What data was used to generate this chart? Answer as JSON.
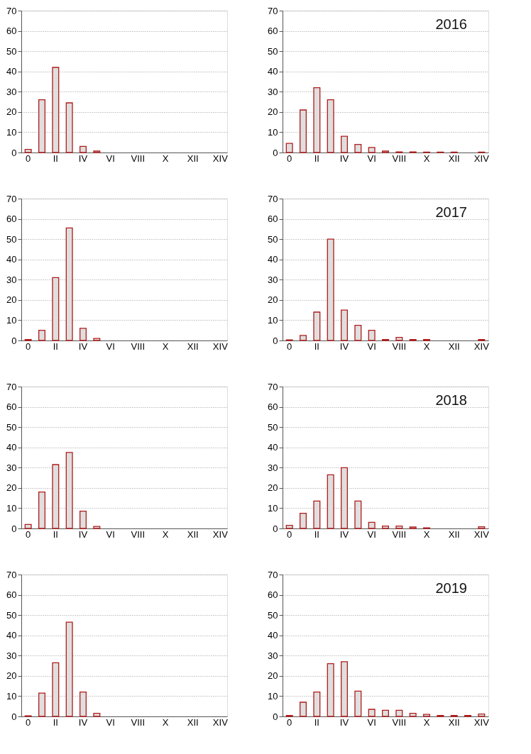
{
  "chart_data": [
    {
      "type": "bar",
      "categories": [
        "0",
        null,
        "II",
        null,
        "IV",
        null,
        "VI",
        null,
        "VIII",
        null,
        "X",
        null,
        "XII",
        null,
        "XIV"
      ],
      "color": "#e0dede",
      "values": [
        1.5,
        26,
        42,
        24.5,
        3,
        0.7,
        null,
        null,
        null,
        null,
        null,
        null,
        null,
        null,
        null
      ],
      "ylim": [
        0,
        70
      ],
      "yticks": [
        0,
        10,
        20,
        30,
        40,
        50,
        60,
        70
      ],
      "grid": "y"
    },
    {
      "type": "bar",
      "title": "2016",
      "categories": [
        "0",
        null,
        "II",
        null,
        "IV",
        null,
        "VI",
        null,
        "VIII",
        null,
        "X",
        null,
        "XII",
        null,
        "XIV"
      ],
      "color": "#e0dede",
      "values": [
        4.5,
        21,
        32,
        26,
        8,
        4,
        2.5,
        0.7,
        0.3,
        0.3,
        0.2,
        0.2,
        0.2,
        null,
        0.2
      ],
      "ylim": [
        0,
        70
      ],
      "yticks": [
        0,
        10,
        20,
        30,
        40,
        50,
        60,
        70
      ],
      "grid": "y"
    },
    {
      "type": "bar",
      "categories": [
        "0",
        null,
        "II",
        null,
        "IV",
        null,
        "VI",
        null,
        "VIII",
        null,
        "X",
        null,
        "XII",
        null,
        "XIV"
      ],
      "color": "#e0dede",
      "values": [
        0.5,
        5,
        31,
        55.5,
        6,
        1,
        null,
        null,
        null,
        null,
        null,
        null,
        null,
        null,
        null
      ],
      "ylim": [
        0,
        70
      ],
      "yticks": [
        0,
        10,
        20,
        30,
        40,
        50,
        60,
        70
      ],
      "grid": "y"
    },
    {
      "type": "bar",
      "title": "2017",
      "categories": [
        "0",
        null,
        "II",
        null,
        "IV",
        null,
        "VI",
        null,
        "VIII",
        null,
        "X",
        null,
        "XII",
        null,
        "XIV"
      ],
      "color": "#e0dede",
      "values": [
        0.3,
        2.5,
        14,
        50,
        15,
        7.5,
        5,
        0.5,
        1.5,
        0.5,
        0.5,
        null,
        null,
        null,
        0.5
      ],
      "ylim": [
        0,
        70
      ],
      "yticks": [
        0,
        10,
        20,
        30,
        40,
        50,
        60,
        70
      ],
      "grid": "y"
    },
    {
      "type": "bar",
      "categories": [
        "0",
        null,
        "II",
        null,
        "IV",
        null,
        "VI",
        null,
        "VIII",
        null,
        "X",
        null,
        "XII",
        null,
        "XIV"
      ],
      "color": "#e0dede",
      "values": [
        2,
        18,
        31.5,
        37.5,
        8.5,
        1,
        null,
        null,
        null,
        null,
        null,
        null,
        null,
        null,
        null
      ],
      "ylim": [
        0,
        70
      ],
      "yticks": [
        0,
        10,
        20,
        30,
        40,
        50,
        60,
        70
      ],
      "grid": "y"
    },
    {
      "type": "bar",
      "title": "2018",
      "categories": [
        "0",
        null,
        "II",
        null,
        "IV",
        null,
        "VI",
        null,
        "VIII",
        null,
        "X",
        null,
        "XII",
        null,
        "XIV"
      ],
      "color": "#e0dede",
      "values": [
        1.5,
        7.5,
        13.5,
        26.5,
        30,
        13.5,
        3,
        1.2,
        1.2,
        0.7,
        0.3,
        null,
        null,
        null,
        0.8
      ],
      "ylim": [
        0,
        70
      ],
      "yticks": [
        0,
        10,
        20,
        30,
        40,
        50,
        60,
        70
      ],
      "grid": "y"
    },
    {
      "type": "bar",
      "categories": [
        "0",
        null,
        "II",
        null,
        "IV",
        null,
        "VI",
        null,
        "VIII",
        null,
        "X",
        null,
        "XII",
        null,
        "XIV"
      ],
      "color": "#e0dede",
      "values": [
        0.3,
        11.5,
        26.5,
        46.5,
        12,
        1.5,
        null,
        null,
        null,
        null,
        null,
        null,
        null,
        null,
        null
      ],
      "ylim": [
        0,
        70
      ],
      "yticks": [
        0,
        10,
        20,
        30,
        40,
        50,
        60,
        70
      ],
      "grid": "y"
    },
    {
      "type": "bar",
      "title": "2019",
      "categories": [
        "0",
        null,
        "II",
        null,
        "IV",
        null,
        "VI",
        null,
        "VIII",
        null,
        "X",
        null,
        "XII",
        null,
        "XIV"
      ],
      "color": "#e0dede",
      "values": [
        0.5,
        7,
        12,
        26,
        27,
        12.5,
        3.5,
        3,
        3,
        1.5,
        1,
        0.5,
        0.5,
        0.5,
        1.2
      ],
      "ylim": [
        0,
        70
      ],
      "yticks": [
        0,
        10,
        20,
        30,
        40,
        50,
        60,
        70
      ],
      "grid": "y"
    }
  ]
}
